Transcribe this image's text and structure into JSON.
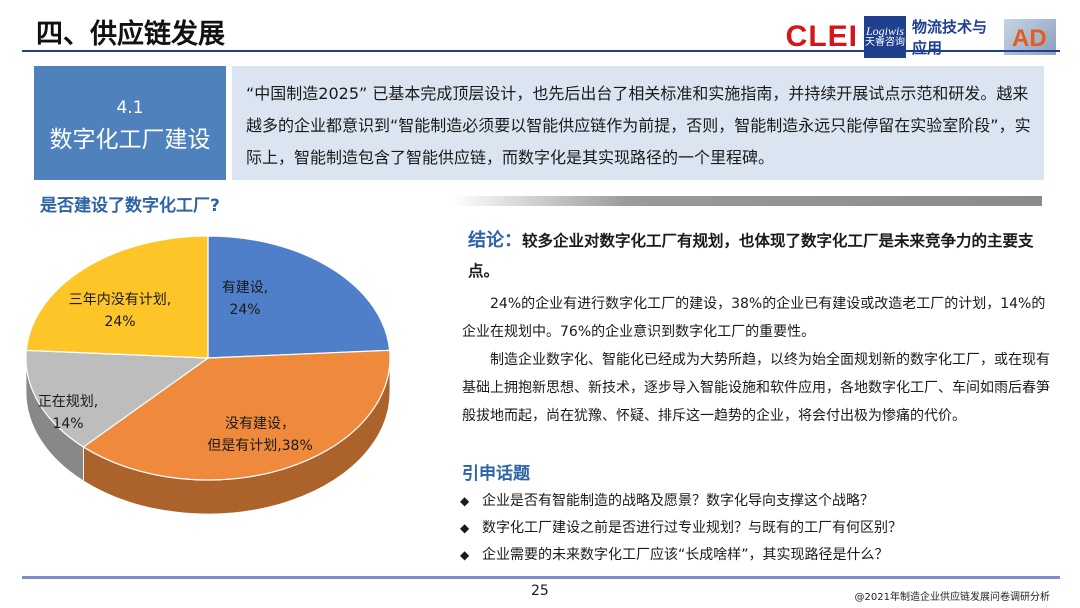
{
  "header": {
    "title": "四、供应链发展",
    "logos": {
      "clei": "CLEI",
      "logiwis_top": "Logiwis",
      "logiwis_bottom": "天睿咨询",
      "wuliu": "物流技术与应用",
      "ad": "AD"
    }
  },
  "section": {
    "number": "4.1",
    "name": "数字化工厂建设",
    "intro": "“中国制造2025” 已基本完成顶层设计，也先后出台了相关标准和实施指南，并持续开展试点示范和研发。越来越多的企业都意识到“智能制造必须要以智能供应链作为前提，否则，智能制造永远只能停留在实验室阶段”，实际上，智能制造包含了智能供应链，而数字化是其实现路径的一个里程碑。"
  },
  "chart_title": "是否建设了数字化工厂?",
  "chart_data": {
    "type": "pie",
    "title": "是否建设了数字化工厂?",
    "slices": [
      {
        "label": "有建设,",
        "value": 24,
        "value_label": "24%",
        "color": "#4f7fc8"
      },
      {
        "label": "没有建设，但是有计划,",
        "value": 38,
        "value_label": "38%",
        "color": "#ef8a3c"
      },
      {
        "label": "正在规划,",
        "value": 14,
        "value_label": "14%",
        "color": "#bdbdbd"
      },
      {
        "label": "三年内没有计划,",
        "value": 24,
        "value_label": "24%",
        "color": "#fdc528"
      }
    ],
    "legend": "none",
    "labels_on_slices": true
  },
  "conclusion": {
    "lead": "结论：",
    "text": "较多企业对数字化工厂有规划，也体现了数字化工厂是未来竞争力的主要支点。"
  },
  "paragraphs": [
    "24%的企业有进行数字化工厂的建设，38%的企业已有建设或改造老工厂的计划，14%的企业在规划中。76%的企业意识到数字化工厂的重要性。",
    "制造企业数字化、智能化已经成为大势所趋，以终为始全面规划新的数字化工厂，或在现有基础上拥抱新思想、新技术，逐步导入智能设施和软件应用，各地数字化工厂、车间如雨后春笋般拔地而起，尚在犹豫、怀疑、排斥这一趋势的企业，将会付出极为惨痛的代价。"
  ],
  "topics": {
    "title": "引申话题",
    "bullet": "◆",
    "items": [
      "企业是否有智能制造的战略及愿景？数字化导向支撑这个战略？",
      "数字化工厂建设之前是否进行过专业规划？与既有的工厂有何区别？",
      "企业需要的未来数字化工厂应该“长成啥样”，其实现路径是什么？"
    ]
  },
  "footer": {
    "page": "25",
    "source": "@2021年制造企业供应链发展问卷调研分析"
  }
}
